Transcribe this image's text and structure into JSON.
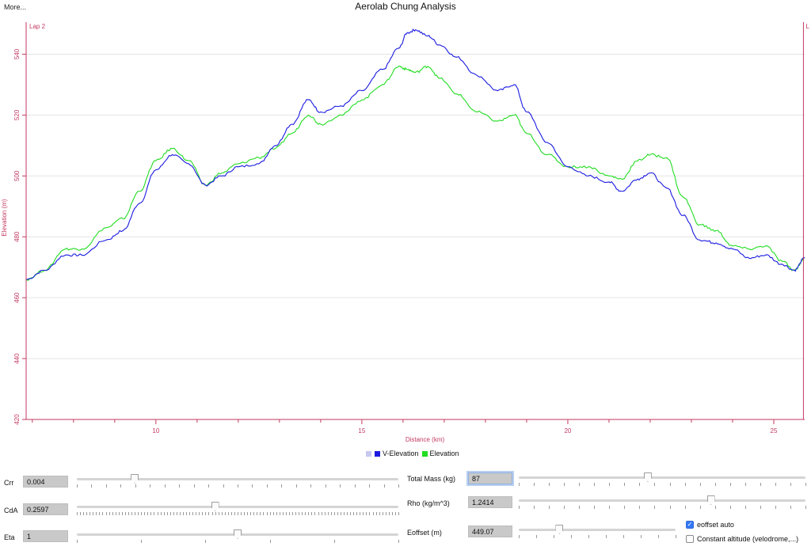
{
  "window": {
    "more_label": "More...",
    "title": "Aerolab Chung Analysis"
  },
  "chart_data": {
    "type": "line",
    "xlabel": "Distance (km)",
    "ylabel": "Elevation (m)",
    "xlim": [
      6.85,
      25.75
    ],
    "ylim": [
      420,
      550
    ],
    "x_ticks": [
      10,
      15,
      20,
      25
    ],
    "y_ticks": [
      420,
      440,
      460,
      480,
      500,
      520,
      540
    ],
    "markers": [
      {
        "label": "Lap 2",
        "x": 6.85
      },
      {
        "label": "L",
        "x": 25.72
      }
    ],
    "legend": [
      {
        "label": "V-Elevation",
        "color": "#1a1ae0"
      },
      {
        "label": "Elevation",
        "color": "#22dd22"
      }
    ],
    "series": [
      {
        "name": "V-Elevation",
        "color": "#1a1ae0",
        "x": [
          6.85,
          7.3,
          7.8,
          8.2,
          8.8,
          9.2,
          9.6,
          10.0,
          10.4,
          10.8,
          11.2,
          11.6,
          12.0,
          12.5,
          12.9,
          13.3,
          13.7,
          14.0,
          14.5,
          15.0,
          15.5,
          15.9,
          16.1,
          16.3,
          16.6,
          16.9,
          17.3,
          17.8,
          18.3,
          18.7,
          19.0,
          19.5,
          20.0,
          20.5,
          21.0,
          21.3,
          21.7,
          22.0,
          22.4,
          22.8,
          23.2,
          23.6,
          24.0,
          24.4,
          24.8,
          25.2,
          25.5,
          25.75
        ],
        "y": [
          466,
          469,
          474,
          474,
          479,
          482,
          491,
          502,
          507,
          504,
          497,
          500,
          503,
          504,
          510,
          517,
          525,
          521,
          523,
          528,
          535,
          542,
          547,
          548,
          546,
          543,
          539,
          533,
          528,
          530,
          521,
          511,
          503,
          500,
          498,
          495,
          499,
          501,
          496,
          487,
          479,
          478,
          476,
          473,
          474,
          471,
          469,
          473
        ]
      },
      {
        "name": "Elevation",
        "color": "#22dd22",
        "x": [
          6.85,
          7.3,
          7.8,
          8.2,
          8.8,
          9.2,
          9.6,
          10.0,
          10.4,
          10.8,
          11.2,
          11.6,
          12.0,
          12.5,
          12.9,
          13.3,
          13.7,
          14.0,
          14.5,
          15.0,
          15.5,
          15.9,
          16.1,
          16.3,
          16.6,
          16.9,
          17.3,
          17.8,
          18.3,
          18.7,
          19.0,
          19.5,
          20.0,
          20.5,
          21.0,
          21.3,
          21.7,
          22.0,
          22.4,
          22.8,
          23.2,
          23.6,
          24.0,
          24.4,
          24.8,
          25.2,
          25.5,
          25.75
        ],
        "y": [
          466,
          469,
          476,
          476,
          483,
          486,
          495,
          505,
          509,
          505,
          497,
          501,
          504,
          506,
          509,
          514,
          520,
          517,
          520,
          525,
          530,
          536,
          535,
          534,
          536,
          532,
          527,
          521,
          518,
          520,
          514,
          507,
          503,
          503,
          500,
          499,
          505,
          507,
          506,
          493,
          484,
          482,
          477,
          476,
          477,
          472,
          469,
          473
        ]
      }
    ]
  },
  "controls": {
    "crr": {
      "label": "Crr",
      "value": "0.004",
      "position": 0.18
    },
    "cda": {
      "label": "CdA",
      "value": "0.2597",
      "position": 0.43
    },
    "eta": {
      "label": "Eta",
      "value": "1",
      "position": 0.5
    },
    "total_mass": {
      "label": "Total Mass (kg)",
      "value": "87",
      "position": 0.45
    },
    "rho": {
      "label": "Rho (kg/m^3)",
      "value": "1.2414",
      "position": 0.67
    },
    "eoffset": {
      "label": "Eoffset (m)",
      "value": "449.07",
      "position": 0.26
    },
    "eoffset_auto": {
      "label": "eoffset auto",
      "checked": true
    },
    "constant_altitude": {
      "label": "Constant altitude (velodrome,...)",
      "checked": false
    }
  }
}
